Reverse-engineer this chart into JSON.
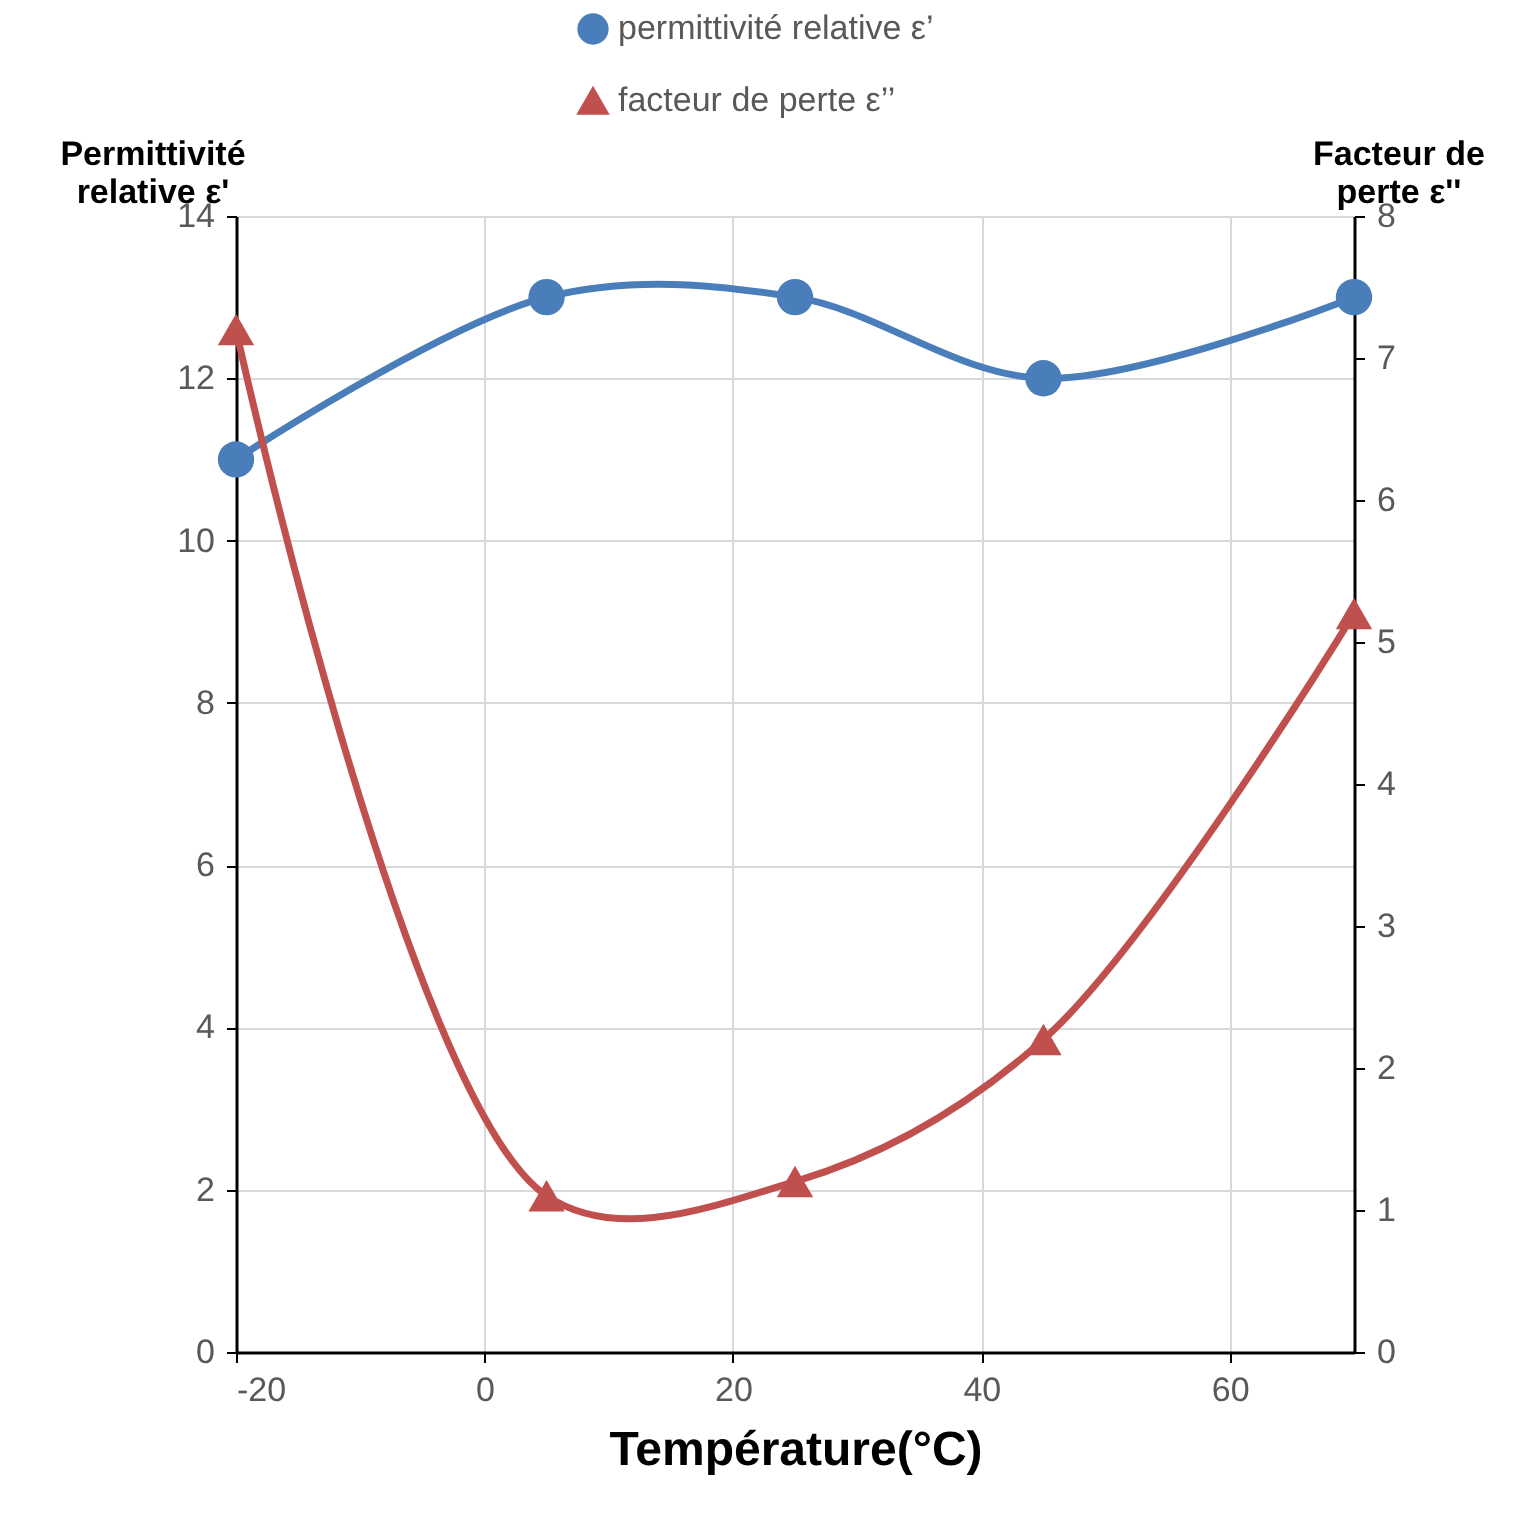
{
  "chart_data": {
    "type": "line",
    "xlabel": "Température(°C)",
    "ylabel": "Permittivité\nrelative ε'",
    "y2label": "Facteur de\nperte ε''",
    "x": [
      -20,
      5,
      25,
      45,
      70
    ],
    "series": [
      {
        "name": "permittivité relative ε’",
        "color": "#4a7ebb",
        "marker": "circle",
        "values": [
          11,
          13,
          13,
          12,
          13
        ]
      },
      {
        "name": "facteur de perte ε’’",
        "color": "#c0504d",
        "marker": "triangle",
        "axis": "y2",
        "values": [
          7.2,
          1.1,
          1.2,
          2.2,
          5.2
        ]
      }
    ],
    "xlim": [
      -20,
      70
    ],
    "xticks": [
      -20,
      0,
      20,
      40,
      60
    ],
    "ylim": [
      0,
      14
    ],
    "yticks": [
      0,
      2,
      4,
      6,
      8,
      10,
      12,
      14
    ],
    "y2lim": [
      0,
      8
    ],
    "y2ticks": [
      0,
      1,
      2,
      3,
      4,
      5,
      6,
      7,
      8
    ],
    "grid": true,
    "legend": "top"
  }
}
